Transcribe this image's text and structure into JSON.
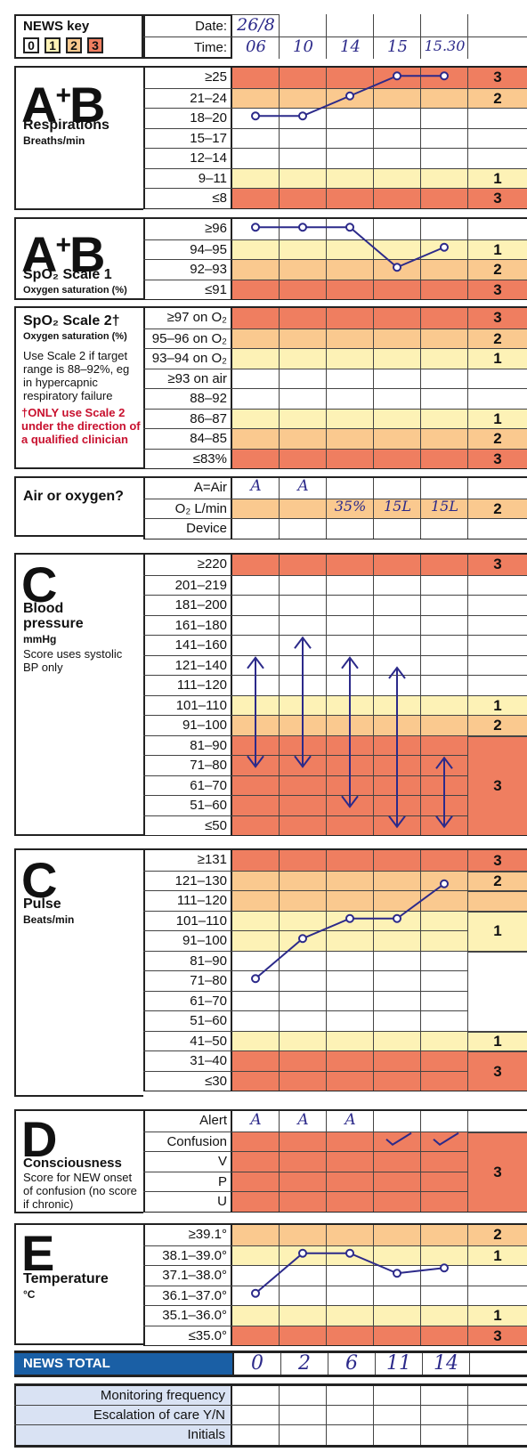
{
  "key": {
    "title": "NEWS key",
    "levels": [
      "0",
      "1",
      "2",
      "3"
    ]
  },
  "header": {
    "date_label": "Date:",
    "time_label": "Time:",
    "date": "26/8",
    "times": [
      "06",
      "10",
      "14",
      "15",
      "15.30"
    ]
  },
  "resp": {
    "big": "A+B",
    "title": "Respirations",
    "sub": "Breaths/min",
    "rows": [
      "≥25",
      "21–24",
      "18–20",
      "15–17",
      "12–14",
      "9–11",
      "≤8"
    ],
    "scores": [
      "3",
      "2",
      "",
      "",
      "",
      "1",
      "3"
    ]
  },
  "spo1": {
    "big": "A+B",
    "title": "SpO₂ Scale 1",
    "sub": "Oxygen saturation (%)",
    "rows": [
      "≥96",
      "94–95",
      "92–93",
      "≤91"
    ],
    "scores": [
      "",
      "1",
      "2",
      "3"
    ]
  },
  "spo2": {
    "title": "SpO₂ Scale 2†",
    "sub": "Oxygen saturation (%)",
    "note": "Use Scale 2 if target range is 88–92%, eg in hypercapnic respiratory failure",
    "warning": "†ONLY use Scale 2 under the direction of a qualified clinician",
    "rows": [
      "≥97 on O₂",
      "95–96 on O₂",
      "93–94 on O₂",
      "≥93 on air",
      "88–92",
      "86–87",
      "84–85",
      "≤83%"
    ],
    "scores": [
      "3",
      "2",
      "1",
      "",
      "",
      "1",
      "2",
      "3"
    ]
  },
  "air": {
    "title": "Air or oxygen?",
    "rows": [
      "A=Air",
      "O₂ L/min",
      "Device"
    ],
    "air_values": [
      "A",
      "A",
      "",
      "",
      ""
    ],
    "o2_values": [
      "",
      "",
      "35%",
      "15L",
      "15L"
    ],
    "score": "2"
  },
  "bp": {
    "big": "C",
    "title": "Blood pressure",
    "sub": "mmHg",
    "note": "Score uses systolic BP only",
    "rows": [
      "≥220",
      "201–219",
      "181–200",
      "161–180",
      "141–160",
      "121–140",
      "111–120",
      "101–110",
      "91–100",
      "81–90",
      "71–80",
      "61–70",
      "51–60",
      "≤50"
    ],
    "scores": [
      "3",
      "",
      "",
      "",
      "",
      "",
      "",
      "1",
      "2",
      "3"
    ]
  },
  "pulse": {
    "big": "C",
    "title": "Pulse",
    "sub": "Beats/min",
    "rows": [
      "≥131",
      "121–130",
      "111–120",
      "101–110",
      "91–100",
      "81–90",
      "71–80",
      "61–70",
      "51–60",
      "41–50",
      "31–40",
      "≤30"
    ],
    "scores": [
      "3",
      "2",
      "1",
      "",
      "",
      "1",
      "3"
    ]
  },
  "cons": {
    "big": "D",
    "title": "Consciousness",
    "note": "Score for NEW onset of confusion (no score if chronic)",
    "rows": [
      "Alert",
      "Confusion",
      "V",
      "P",
      "U"
    ],
    "alert_values": [
      "A",
      "A",
      "A",
      "",
      ""
    ],
    "score": "3"
  },
  "temp": {
    "big": "E",
    "title": "Temperature",
    "sub": "°C",
    "rows": [
      "≥39.1°",
      "38.1–39.0°",
      "37.1–38.0°",
      "36.1–37.0°",
      "35.1–36.0°",
      "≤35.0°"
    ],
    "scores": [
      "2",
      "1",
      "",
      "",
      "1",
      "3"
    ]
  },
  "total": {
    "label": "NEWS TOTAL",
    "values": [
      "0",
      "2",
      "6",
      "11",
      "14"
    ]
  },
  "footer": {
    "rows": [
      "Monitoring frequency",
      "Escalation of care Y/N",
      "Initials"
    ]
  },
  "colors": {
    "red": "#ef7e60",
    "orange": "#fac98f",
    "yellow": "#fdf2b6",
    "ink": "#2c2a8a",
    "total_bg": "#1a5fa5",
    "footer_bg": "#d9e2f3"
  }
}
